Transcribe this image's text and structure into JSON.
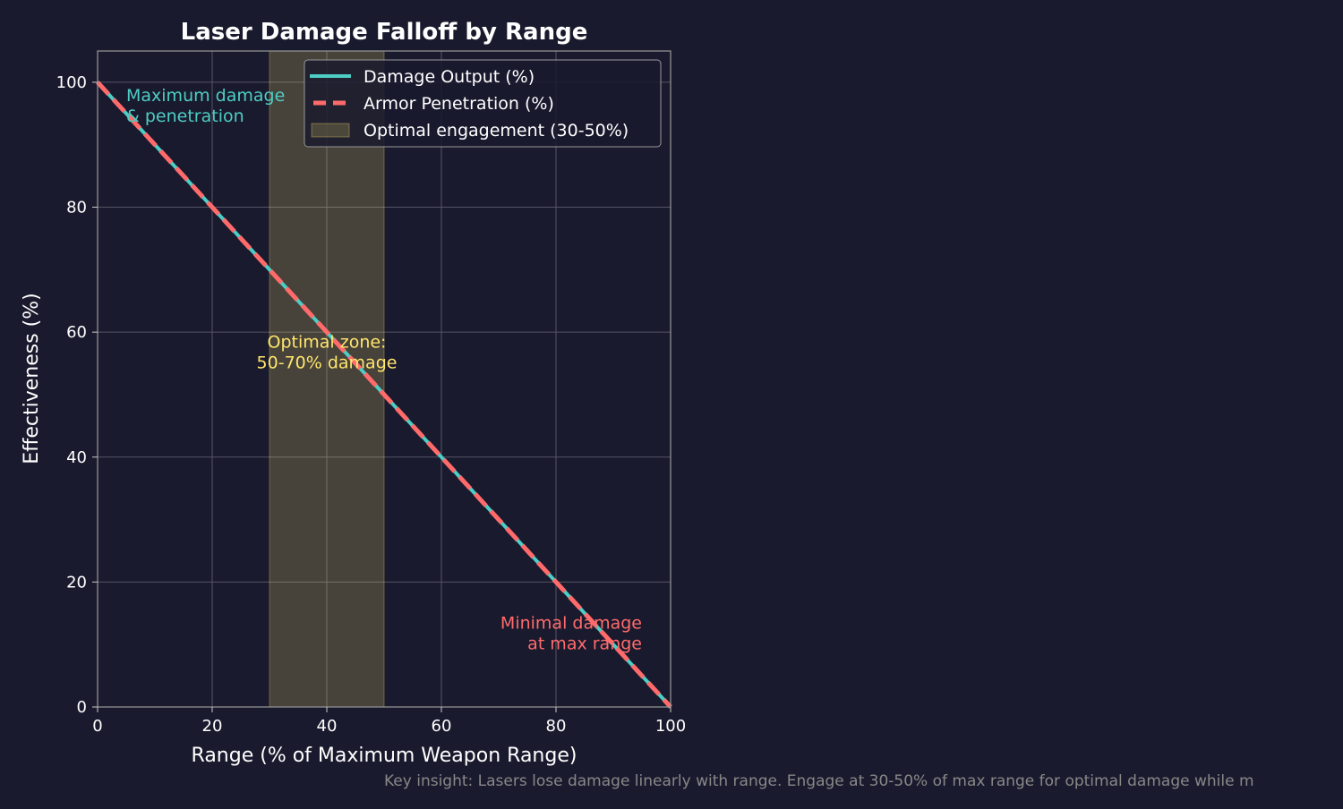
{
  "colors": {
    "background": "#1a1a2e",
    "damage": "#4ecdc4",
    "armor": "#ff6b6b",
    "zone": "#ffe66d",
    "grid": "#555566",
    "text": "#ffffff",
    "footnote": "#888888"
  },
  "chart_data": {
    "type": "line",
    "title": "Laser Damage Falloff by Range",
    "xlabel": "Range (% of Maximum Weapon Range)",
    "ylabel": "Effectiveness (%)",
    "xlim": [
      0,
      100
    ],
    "ylim": [
      0,
      105
    ],
    "xticks": [
      0,
      20,
      40,
      60,
      80,
      100
    ],
    "yticks": [
      0,
      20,
      40,
      60,
      80,
      100
    ],
    "grid": true,
    "legend_position": "top-right",
    "series": [
      {
        "name": "Damage Output (%)",
        "style": "solid",
        "color": "#4ecdc4",
        "x": [
          0,
          100
        ],
        "y": [
          100,
          0
        ]
      },
      {
        "name": "Armor Penetration (%)",
        "style": "dashed",
        "color": "#ff6b6b",
        "x": [
          0,
          100
        ],
        "y": [
          100,
          0
        ]
      }
    ],
    "span": {
      "name": "Optimal engagement (30-50%)",
      "x": [
        30,
        50
      ],
      "color": "#ffe66d"
    },
    "annotations": [
      {
        "lines": [
          "Maximum damage",
          "& penetration"
        ],
        "x": 5,
        "y": 97,
        "align": "start",
        "color": "#4ecdc4"
      },
      {
        "lines": [
          "Optimal zone:",
          "50-70% damage"
        ],
        "x": 40,
        "y": 57.5,
        "align": "middle",
        "color": "#ffe66d"
      },
      {
        "lines": [
          "Minimal damage",
          "at max range"
        ],
        "x": 95,
        "y": 12.5,
        "align": "end",
        "color": "#ff6b6b"
      }
    ]
  },
  "footnote": "Key insight: Lasers lose damage linearly with range. Engage at 30-50% of max range for optimal damage while m"
}
